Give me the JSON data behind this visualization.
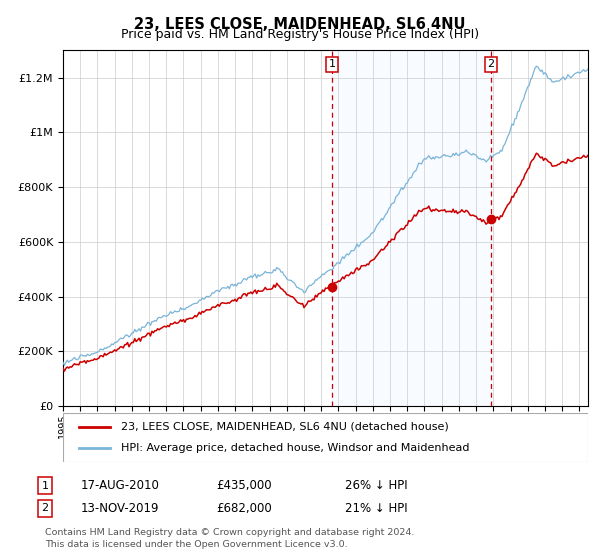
{
  "title": "23, LEES CLOSE, MAIDENHEAD, SL6 4NU",
  "subtitle": "Price paid vs. HM Land Registry's House Price Index (HPI)",
  "legend_entry1": "23, LEES CLOSE, MAIDENHEAD, SL6 4NU (detached house)",
  "legend_entry2": "HPI: Average price, detached house, Windsor and Maidenhead",
  "annotation1_date": "17-AUG-2010",
  "annotation1_price": "£435,000",
  "annotation1_pct": "26% ↓ HPI",
  "annotation2_date": "13-NOV-2019",
  "annotation2_price": "£682,000",
  "annotation2_pct": "21% ↓ HPI",
  "footer": "Contains HM Land Registry data © Crown copyright and database right 2024.\nThis data is licensed under the Open Government Licence v3.0.",
  "hpi_color": "#7ab4d8",
  "red_color": "#cc0000",
  "shade_color": "#ddeeff",
  "dashed_color": "#cc0000",
  "ylim_max": 1300000,
  "sale1_year": 2010.63,
  "sale1_value": 435000,
  "sale2_year": 2019.87,
  "sale2_value": 682000
}
